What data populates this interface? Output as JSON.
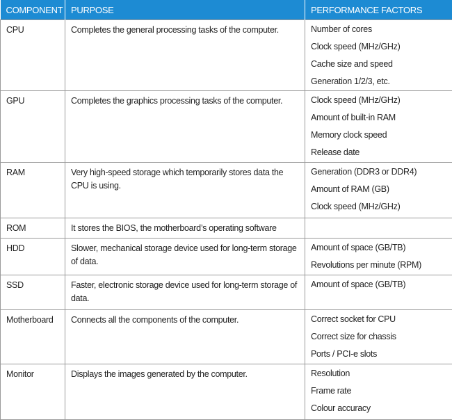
{
  "table": {
    "header": [
      "COMPONENT",
      "PURPOSE",
      "PERFORMANCE FACTORS"
    ],
    "rows": [
      {
        "component": "CPU",
        "purpose": "Completes the general processing tasks of the computer.",
        "factors": [
          "Number of cores",
          "Clock speed (MHz/GHz)",
          "Cache size and speed",
          "Generation 1/2/3, etc."
        ]
      },
      {
        "component": "GPU",
        "purpose": "Completes the graphics processing tasks of the computer.",
        "factors": [
          "Clock speed (MHz/GHz)",
          "Amount of built-in RAM",
          "Memory clock speed",
          "Release date"
        ]
      },
      {
        "component": "RAM",
        "purpose": "Very high-speed storage which temporarily stores data the CPU is using.",
        "factors": [
          "Generation (DDR3 or DDR4)",
          "Amount of RAM (GB)",
          "Clock speed (MHz/GHz)"
        ]
      },
      {
        "component": "ROM",
        "purpose": "It stores the BIOS, the motherboard’s operating software",
        "factors": []
      },
      {
        "component": "HDD",
        "purpose": "Slower, mechanical storage device used for long-term storage of data.",
        "factors": [
          "Amount of space (GB/TB)",
          "Revolutions per minute (RPM)"
        ]
      },
      {
        "component": "SSD",
        "purpose": "Faster, electronic storage device used for long-term storage of data.",
        "factors": [
          "Amount of space (GB/TB)"
        ]
      },
      {
        "component": "Motherboard",
        "purpose": "Connects all the components of the computer.",
        "factors": [
          "Correct socket for CPU",
          "Correct size for chassis",
          "Ports / PCI-e slots"
        ]
      },
      {
        "component": "Monitor",
        "purpose": "Displays the images generated by the computer.",
        "factors": [
          "Resolution",
          "Frame rate",
          "Colour accuracy"
        ]
      }
    ]
  }
}
